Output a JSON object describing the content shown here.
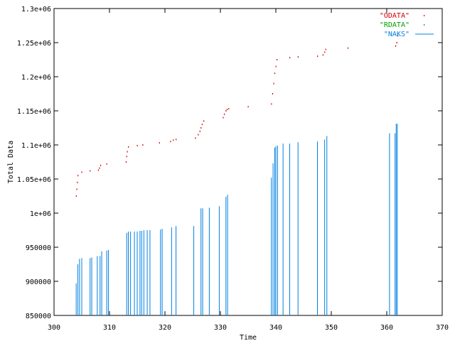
{
  "chart_data": {
    "type": "line",
    "title": "",
    "xlabel": "Time",
    "ylabel": "Total Data",
    "xlim": [
      300,
      370
    ],
    "ylim": [
      850000,
      1300000
    ],
    "x_ticks": [
      300,
      310,
      320,
      330,
      340,
      350,
      360,
      370
    ],
    "x_tick_labels": [
      "300",
      "310",
      "320",
      "330",
      "340",
      "350",
      "360",
      "370"
    ],
    "y_ticks": [
      850000,
      900000,
      950000,
      1000000,
      1050000,
      1100000,
      1150000,
      1200000,
      1250000,
      1300000
    ],
    "y_tick_labels": [
      "850000",
      "900000",
      "950000",
      "1e+06",
      "1.05e+06",
      "1.1e+06",
      "1.15e+06",
      "1.2e+06",
      "1.25e+06",
      "1.3e+06"
    ],
    "grid": false,
    "legend_position": "top-right",
    "series": [
      {
        "name": "\"ODATA\"",
        "style": "points",
        "color": "#cc0000",
        "x": [
          304.0,
          304.1,
          304.2,
          304.3,
          305.0,
          306.5,
          308.0,
          308.2,
          308.4,
          309.5,
          313.0,
          313.1,
          313.2,
          313.4,
          315.0,
          316.0,
          319.0,
          321.0,
          321.5,
          322.0,
          325.5,
          326.0,
          326.3,
          326.5,
          326.7,
          327.0,
          330.5,
          330.7,
          331.0,
          331.2,
          331.5,
          335.0,
          339.2,
          339.4,
          339.6,
          339.8,
          340.0,
          340.2,
          342.5,
          344.0,
          347.5,
          348.5,
          348.8,
          349.0,
          353.0,
          361.6,
          361.8,
          362.0
        ],
        "y": [
          1025000,
          1035000,
          1045000,
          1055000,
          1060000,
          1062000,
          1063000,
          1066000,
          1070000,
          1072000,
          1075000,
          1083000,
          1090000,
          1097000,
          1099000,
          1100000,
          1103000,
          1105000,
          1107000,
          1108000,
          1110000,
          1115000,
          1120000,
          1125000,
          1130000,
          1135000,
          1140000,
          1145000,
          1150000,
          1152000,
          1153000,
          1156000,
          1160000,
          1175000,
          1190000,
          1205000,
          1215000,
          1225000,
          1228000,
          1229000,
          1230000,
          1232000,
          1236000,
          1240000,
          1242000,
          1245000,
          1250000,
          1260000
        ]
      },
      {
        "name": "\"RDATA\"",
        "style": "points",
        "color": "#00a000",
        "x": [],
        "y": []
      },
      {
        "name": "\"NAKS\"",
        "style": "impulses",
        "color": "#0080e0",
        "x": [
          304.0,
          304.3,
          304.6,
          305.0,
          306.5,
          306.8,
          307.8,
          308.3,
          308.6,
          309.5,
          309.8,
          313.1,
          313.4,
          313.8,
          314.5,
          315.0,
          315.5,
          315.8,
          316.2,
          316.8,
          317.3,
          319.2,
          319.5,
          321.2,
          322.0,
          325.2,
          326.5,
          326.8,
          328.0,
          329.8,
          331.0,
          331.3,
          339.2,
          339.5,
          339.8,
          340.0,
          340.3,
          341.3,
          342.5,
          344.0,
          347.5,
          348.8,
          349.2,
          360.5,
          361.5,
          361.7,
          361.9
        ],
        "y": [
          897000,
          925000,
          933000,
          934000,
          934000,
          935000,
          937000,
          937000,
          944000,
          945000,
          946000,
          971000,
          973000,
          973000,
          973000,
          973000,
          974000,
          974000,
          975000,
          975000,
          975000,
          976000,
          977000,
          979000,
          981000,
          981000,
          1007000,
          1007000,
          1008000,
          1010000,
          1024000,
          1027000,
          1052000,
          1073000,
          1096000,
          1098000,
          1099000,
          1102000,
          1102000,
          1104000,
          1105000,
          1108000,
          1113000,
          1117000,
          1117000,
          1131000,
          1131000
        ]
      }
    ]
  }
}
